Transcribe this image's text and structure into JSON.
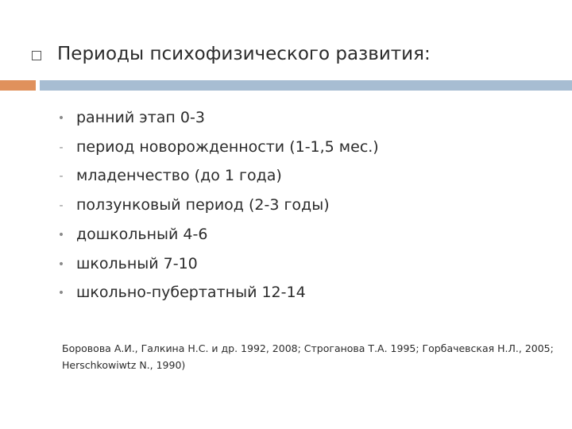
{
  "title": "Периоды психофизического развития:",
  "items": [
    {
      "marker": "•",
      "text": "ранний этап 0-3"
    },
    {
      "marker": "-",
      "text": "период новорожденности (1-1,5 мес.)"
    },
    {
      "marker": "-",
      "text": "младенчество (до 1 года)"
    },
    {
      "marker": "-",
      "text": "ползунковый период (2-3 годы)"
    },
    {
      "marker": "•",
      "text": "дошкольный 4-6"
    },
    {
      "marker": "•",
      "text": "школьный 7-10"
    },
    {
      "marker": "•",
      "text": "школьно-пубертатный 12-14"
    }
  ],
  "citation": "Боровова А.И., Галкина Н.С. и др. 1992, 2008; Строганова Т.А. 1995; Горбачевская Н.Л., 2005; Herschkowiwtz N., 1990)"
}
